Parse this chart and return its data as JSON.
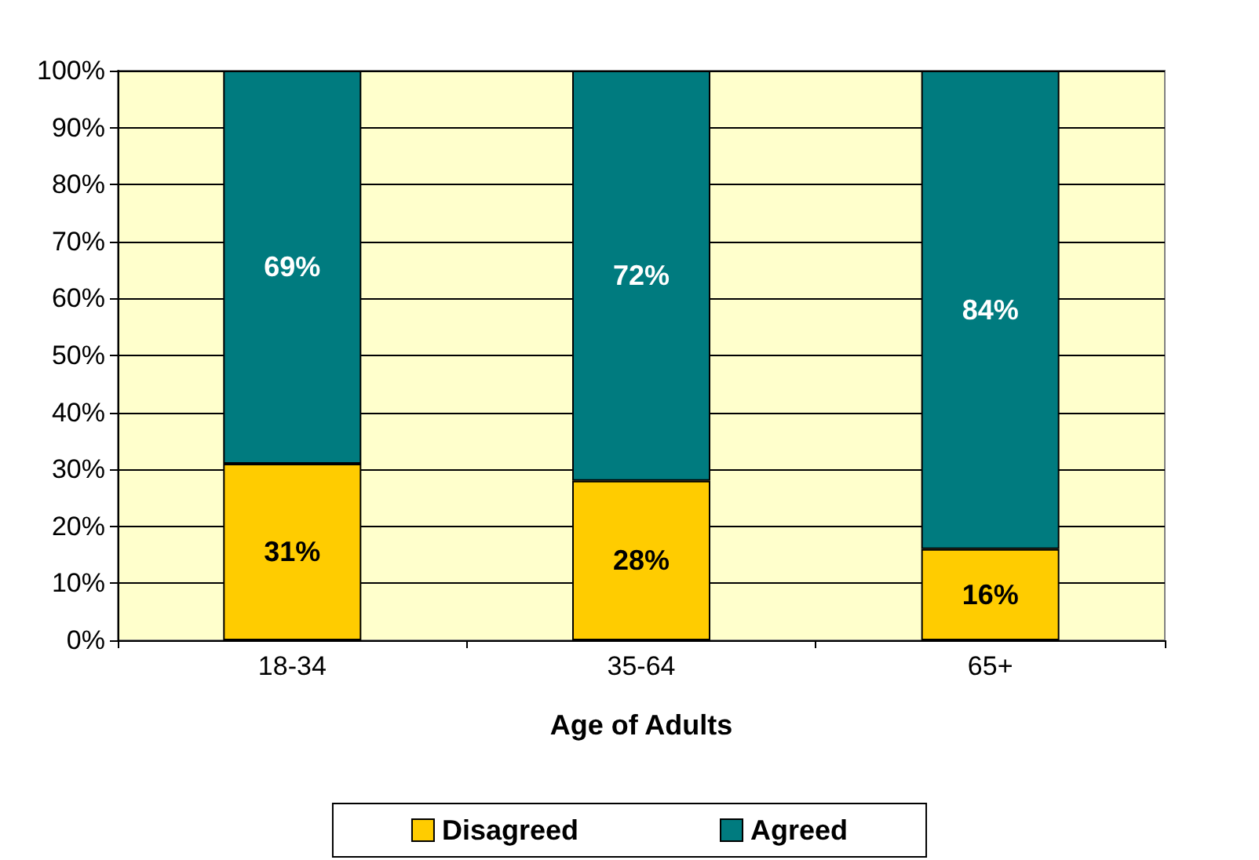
{
  "chart_data": {
    "type": "bar",
    "stacked": true,
    "xlabel": "Age of Adults",
    "categories": [
      "18-34",
      "35-64",
      "65+"
    ],
    "series": [
      {
        "name": "Disagreed",
        "color": "#ffcc00",
        "values": [
          31,
          28,
          16
        ],
        "value_labels": [
          "31%",
          "28%",
          "16%"
        ]
      },
      {
        "name": "Agreed",
        "color": "#007b7f",
        "values": [
          69,
          72,
          84
        ],
        "value_labels": [
          "69%",
          "72%",
          "84%"
        ]
      }
    ],
    "ylim": [
      0,
      100
    ],
    "yticks": [
      {
        "value": 0,
        "label": "0%"
      },
      {
        "value": 10,
        "label": "10%"
      },
      {
        "value": 20,
        "label": "20%"
      },
      {
        "value": 30,
        "label": "30%"
      },
      {
        "value": 40,
        "label": "40%"
      },
      {
        "value": 50,
        "label": "50%"
      },
      {
        "value": 60,
        "label": "60%"
      },
      {
        "value": 70,
        "label": "70%"
      },
      {
        "value": 80,
        "label": "80%"
      },
      {
        "value": 90,
        "label": "90%"
      },
      {
        "value": 100,
        "label": "100%"
      }
    ],
    "grid": "y",
    "legend": "bottom"
  }
}
